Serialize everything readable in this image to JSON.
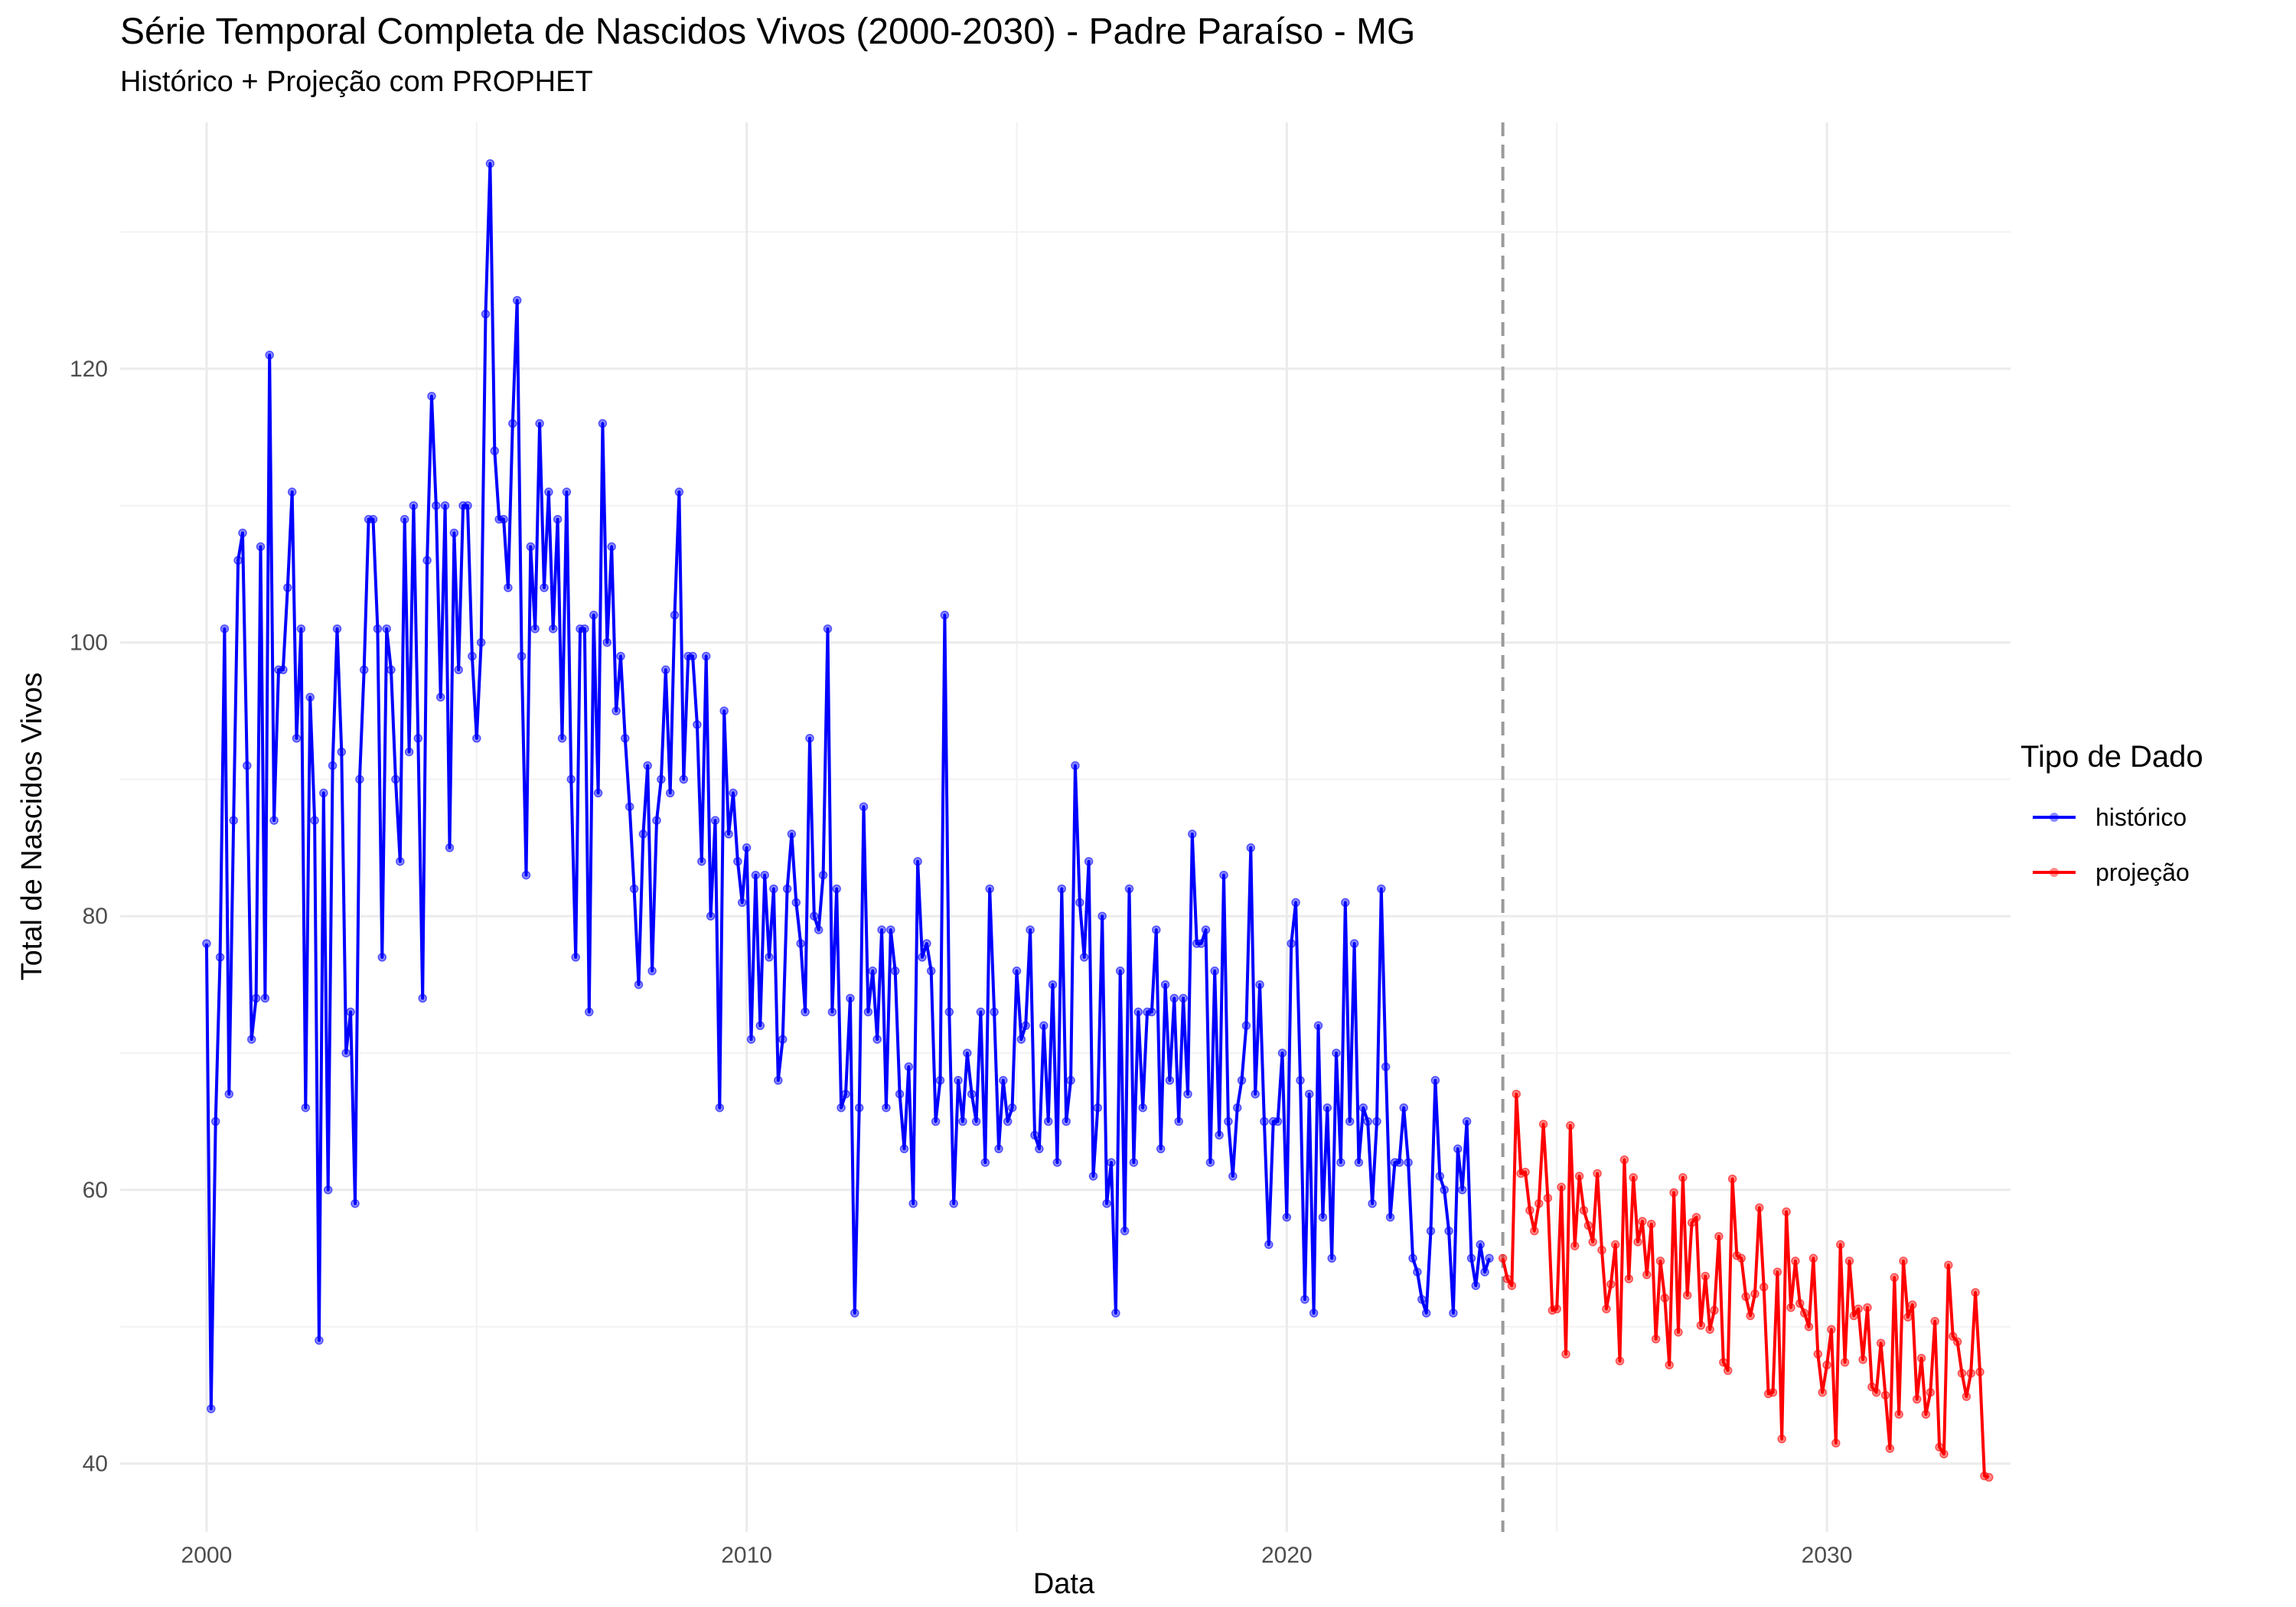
{
  "chart_data": {
    "type": "line",
    "title": "Série Temporal Completa de Nascidos Vivos (2000-2030) -  Padre Paraíso - MG",
    "subtitle": "Histórico + Projeção com PROPHET",
    "xlabel": "Data",
    "ylabel": "Total de Nascidos Vivos",
    "xlim": [
      1998.4,
      2033.4
    ],
    "ylim": [
      35,
      138
    ],
    "x_ticks": [
      2000,
      2010,
      2020,
      2030
    ],
    "y_ticks": [
      40,
      60,
      80,
      100,
      120
    ],
    "grid": true,
    "vline_x": 2024.0,
    "legend": {
      "title": "Tipo de Dado",
      "position": "right",
      "entries": [
        {
          "label": "histórico",
          "color": "#0000FF"
        },
        {
          "label": "projeção",
          "color": "#FF0000"
        }
      ]
    },
    "series": [
      {
        "name": "histórico",
        "color": "#0000FF",
        "start": 2000.0,
        "step_months": 1,
        "values": [
          78,
          44,
          65,
          77,
          101,
          67,
          87,
          106,
          108,
          91,
          71,
          74,
          107,
          74,
          121,
          87,
          98,
          98,
          104,
          111,
          93,
          101,
          66,
          96,
          87,
          49,
          89,
          60,
          91,
          101,
          92,
          70,
          73,
          59,
          90,
          98,
          109,
          109,
          101,
          77,
          101,
          98,
          90,
          84,
          109,
          92,
          110,
          93,
          74,
          106,
          118,
          110,
          96,
          110,
          85,
          108,
          98,
          110,
          110,
          99,
          93,
          100,
          124,
          135,
          114,
          109,
          109,
          104,
          116,
          125,
          99,
          83,
          107,
          101,
          116,
          104,
          111,
          101,
          109,
          93,
          111,
          90,
          77,
          101,
          101,
          73,
          102,
          89,
          116,
          100,
          107,
          95,
          99,
          93,
          88,
          82,
          75,
          86,
          91,
          76,
          87,
          90,
          98,
          89,
          102,
          111,
          90,
          99,
          99,
          94,
          84,
          99,
          80,
          87,
          66,
          95,
          86,
          89,
          84,
          81,
          85,
          71,
          83,
          72,
          83,
          77,
          82,
          68,
          71,
          82,
          86,
          81,
          78,
          73,
          93,
          80,
          79,
          83,
          101,
          73,
          82,
          66,
          67,
          74,
          51,
          66,
          88,
          73,
          76,
          71,
          79,
          66,
          79,
          76,
          67,
          63,
          69,
          59,
          84,
          77,
          78,
          76,
          65,
          68,
          102,
          73,
          59,
          68,
          65,
          70,
          67,
          65,
          73,
          62,
          82,
          73,
          63,
          68,
          65,
          66,
          76,
          71,
          72,
          79,
          64,
          63,
          72,
          65,
          75,
          62,
          82,
          65,
          68,
          91,
          81,
          77,
          84,
          61,
          66,
          80,
          59,
          62,
          51,
          76,
          57,
          82,
          62,
          73,
          66,
          73,
          73,
          79,
          63,
          75,
          68,
          74,
          65,
          74,
          67,
          86,
          78,
          78,
          79,
          62,
          76,
          64,
          83,
          65,
          61,
          66,
          68,
          72,
          85,
          67,
          75,
          65,
          56,
          65,
          65,
          70,
          58,
          78,
          81,
          68,
          52,
          67,
          51,
          72,
          58,
          66,
          55,
          70,
          62,
          81,
          65,
          78,
          62,
          66,
          65,
          59,
          65,
          82,
          69,
          58,
          62,
          62,
          66,
          62,
          55,
          54,
          52,
          51,
          57,
          68,
          61,
          60,
          57,
          51,
          63,
          60,
          65,
          55,
          53,
          56,
          54,
          55
        ]
      },
      {
        "name": "projeção",
        "color": "#FF0000",
        "start": 2024.0,
        "step_months": 1,
        "values": [
          55,
          53.5,
          53,
          67,
          61.2,
          61.3,
          58.5,
          57,
          59,
          64.8,
          59.4,
          51.2,
          51.3,
          60.2,
          48,
          64.7,
          55.9,
          61,
          58.5,
          57.4,
          56.2,
          61.2,
          55.6,
          51.3,
          53.1,
          56,
          47.5,
          62.2,
          53.5,
          60.9,
          56.2,
          57.7,
          53.8,
          57.5,
          49.1,
          54.8,
          52.1,
          47.2,
          59.8,
          49.6,
          60.9,
          52.3,
          57.6,
          58,
          50.1,
          53.7,
          49.8,
          51.2,
          56.6,
          47.4,
          46.8,
          60.8,
          55.2,
          55,
          52.2,
          50.8,
          52.4,
          58.7,
          52.9,
          45.1,
          45.2,
          54,
          41.8,
          58.4,
          51.4,
          54.8,
          51.7,
          51,
          50,
          55,
          48,
          45.2,
          47.2,
          49.8,
          41.5,
          56,
          47.4,
          54.8,
          50.8,
          51.3,
          47.6,
          51.4,
          45.6,
          45.2,
          48.8,
          45,
          41.1,
          53.6,
          43.6,
          54.8,
          50.7,
          51.6,
          44.7,
          47.7,
          43.6,
          45.2,
          50.4,
          41.2,
          40.7,
          54.5,
          49.3,
          48.9,
          46.6,
          44.9,
          46.6,
          52.5,
          46.7,
          39.1,
          39
        ]
      }
    ]
  }
}
